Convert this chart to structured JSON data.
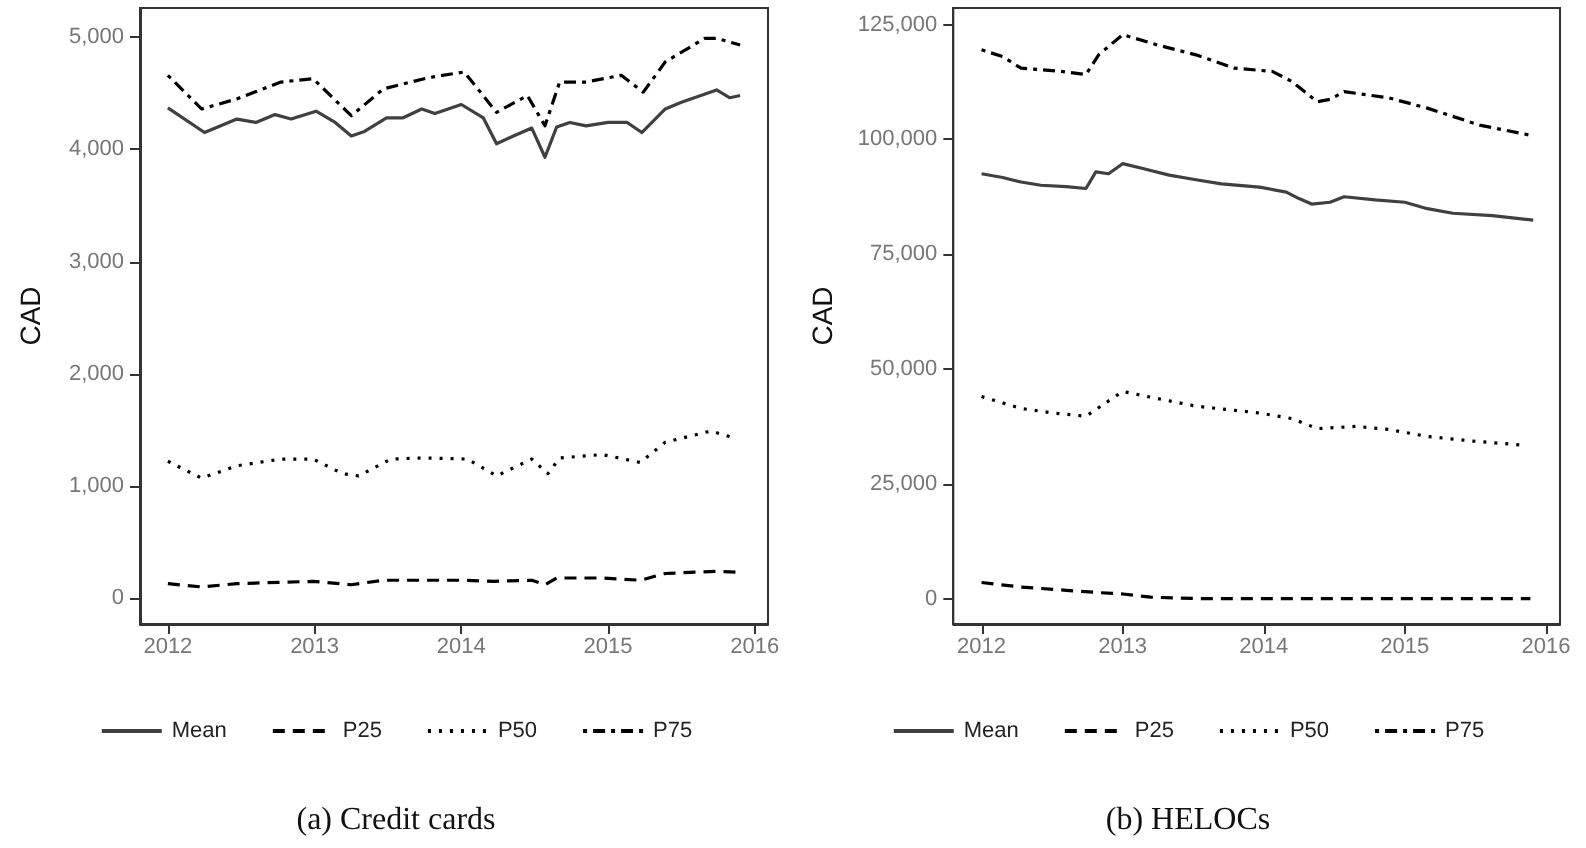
{
  "chart_data": [
    {
      "type": "line",
      "title": "(a) Credit cards",
      "ylabel": "CAD",
      "xlim": [
        2011.81,
        2016.09
      ],
      "xticks": [
        2012,
        2013,
        2014,
        2015,
        2016
      ],
      "ylim": [
        -230,
        5260
      ],
      "yticks": [
        {
          "value": 0,
          "label": "0"
        },
        {
          "value": 1000,
          "label": "1,000"
        },
        {
          "value": 2000,
          "label": "2,000"
        },
        {
          "value": 3000,
          "label": "3,000"
        },
        {
          "value": 4000,
          "label": "4,000"
        },
        {
          "value": 5000,
          "label": "5,000"
        }
      ],
      "grid": false,
      "legend": "bottom",
      "marker": "none",
      "series": [
        {
          "name": "Mean",
          "color": "#404040",
          "line_style": "solid",
          "x": [
            2012.0,
            2012.25,
            2012.47,
            2012.6,
            2012.73,
            2012.84,
            2013.01,
            2013.14,
            2013.25,
            2013.34,
            2013.49,
            2013.6,
            2013.73,
            2013.82,
            2014.0,
            2014.15,
            2014.24,
            2014.34,
            2014.48,
            2014.57,
            2014.65,
            2014.74,
            2014.85,
            2015.0,
            2015.13,
            2015.23,
            2015.39,
            2015.5,
            2015.74,
            2015.83,
            2015.9
          ],
          "values": [
            4370,
            4150,
            4270,
            4240,
            4310,
            4270,
            4340,
            4240,
            4120,
            4160,
            4280,
            4280,
            4360,
            4320,
            4400,
            4280,
            4050,
            4110,
            4190,
            3930,
            4200,
            4240,
            4210,
            4240,
            4240,
            4150,
            4360,
            4420,
            4530,
            4460,
            4480
          ]
        },
        {
          "name": "P25",
          "color": "#000000",
          "line_style": "dashed",
          "x": [
            2012.0,
            2012.23,
            2012.47,
            2012.99,
            2013.25,
            2013.47,
            2014.0,
            2014.22,
            2014.48,
            2014.57,
            2014.65,
            2014.96,
            2015.22,
            2015.39,
            2015.74,
            2015.9
          ],
          "values": [
            130,
            100,
            130,
            150,
            120,
            160,
            160,
            150,
            160,
            120,
            180,
            180,
            160,
            220,
            240,
            230
          ]
        },
        {
          "name": "P50",
          "color": "#000000",
          "line_style": "dotted",
          "x": [
            2012.0,
            2012.23,
            2012.47,
            2012.77,
            2012.99,
            2013.19,
            2013.3,
            2013.52,
            2013.73,
            2014.04,
            2014.24,
            2014.48,
            2014.59,
            2014.67,
            2014.96,
            2015.22,
            2015.39,
            2015.7,
            2015.83
          ],
          "values": [
            1220,
            1070,
            1180,
            1240,
            1240,
            1110,
            1090,
            1240,
            1250,
            1240,
            1090,
            1240,
            1110,
            1250,
            1280,
            1210,
            1390,
            1490,
            1440
          ]
        },
        {
          "name": "P75",
          "color": "#000000",
          "line_style": "dashdot",
          "x": [
            2012.0,
            2012.23,
            2012.47,
            2012.77,
            2012.99,
            2013.25,
            2013.47,
            2013.78,
            2014.02,
            2014.24,
            2014.45,
            2014.57,
            2014.67,
            2014.85,
            2015.09,
            2015.24,
            2015.39,
            2015.66,
            2015.74,
            2015.9
          ],
          "values": [
            4660,
            4360,
            4450,
            4600,
            4630,
            4300,
            4540,
            4640,
            4690,
            4330,
            4480,
            4210,
            4600,
            4600,
            4660,
            4510,
            4780,
            4990,
            4990,
            4930
          ]
        }
      ]
    },
    {
      "type": "line",
      "title": "(b) HELOCs",
      "ylabel": "CAD",
      "xlim": [
        2011.8,
        2016.1
      ],
      "xticks": [
        2012,
        2013,
        2014,
        2015,
        2016
      ],
      "ylim": [
        -5540,
        128600
      ],
      "yticks": [
        {
          "value": 0,
          "label": "0"
        },
        {
          "value": 25000,
          "label": "25,000"
        },
        {
          "value": 50000,
          "label": "50,000"
        },
        {
          "value": 75000,
          "label": "75,000"
        },
        {
          "value": 100000,
          "label": "100,000"
        },
        {
          "value": 125000,
          "label": "125,000"
        }
      ],
      "grid": false,
      "legend": "bottom",
      "marker": "none",
      "series": [
        {
          "name": "Mean",
          "color": "#404040",
          "line_style": "solid",
          "x": [
            2012.0,
            2012.15,
            2012.28,
            2012.42,
            2012.6,
            2012.74,
            2012.81,
            2012.9,
            2013.0,
            2013.15,
            2013.33,
            2013.52,
            2013.7,
            2013.97,
            2014.16,
            2014.25,
            2014.34,
            2014.47,
            2014.57,
            2014.79,
            2015.0,
            2015.16,
            2015.34,
            2015.62,
            2015.91
          ],
          "values": [
            92500,
            91700,
            90700,
            90000,
            89700,
            89300,
            92900,
            92500,
            94700,
            93600,
            92200,
            91200,
            90300,
            89600,
            88500,
            87100,
            85900,
            86300,
            87500,
            86800,
            86300,
            84900,
            83900,
            83400,
            82400
          ]
        },
        {
          "name": "P25",
          "color": "#000000",
          "line_style": "dashed",
          "x": [
            2012.0,
            2012.28,
            2012.6,
            2012.83,
            2013.0,
            2013.2,
            2013.52,
            2015.89
          ],
          "values": [
            3500,
            2500,
            1800,
            1300,
            1000,
            300,
            0,
            0
          ]
        },
        {
          "name": "P50",
          "color": "#000000",
          "line_style": "dotted",
          "x": [
            2012.0,
            2012.28,
            2012.51,
            2012.74,
            2013.0,
            2013.24,
            2013.52,
            2013.97,
            2014.2,
            2014.38,
            2014.66,
            2014.89,
            2015.16,
            2015.48,
            2015.84
          ],
          "values": [
            44000,
            41400,
            40400,
            39700,
            45100,
            43600,
            41900,
            40400,
            39200,
            37000,
            37500,
            36800,
            35300,
            34300,
            33400
          ]
        },
        {
          "name": "P75",
          "color": "#000000",
          "line_style": "dashdot",
          "x": [
            2012.0,
            2012.15,
            2012.28,
            2012.56,
            2012.74,
            2012.83,
            2013.0,
            2013.24,
            2013.52,
            2013.79,
            2014.06,
            2014.2,
            2014.38,
            2014.47,
            2014.57,
            2014.89,
            2015.16,
            2015.53,
            2015.89
          ],
          "values": [
            119500,
            118000,
            115500,
            114800,
            114100,
            118400,
            122800,
            120600,
            118400,
            115500,
            114800,
            112600,
            108200,
            108700,
            110400,
            109000,
            106800,
            103100,
            100900
          ]
        }
      ]
    }
  ]
}
